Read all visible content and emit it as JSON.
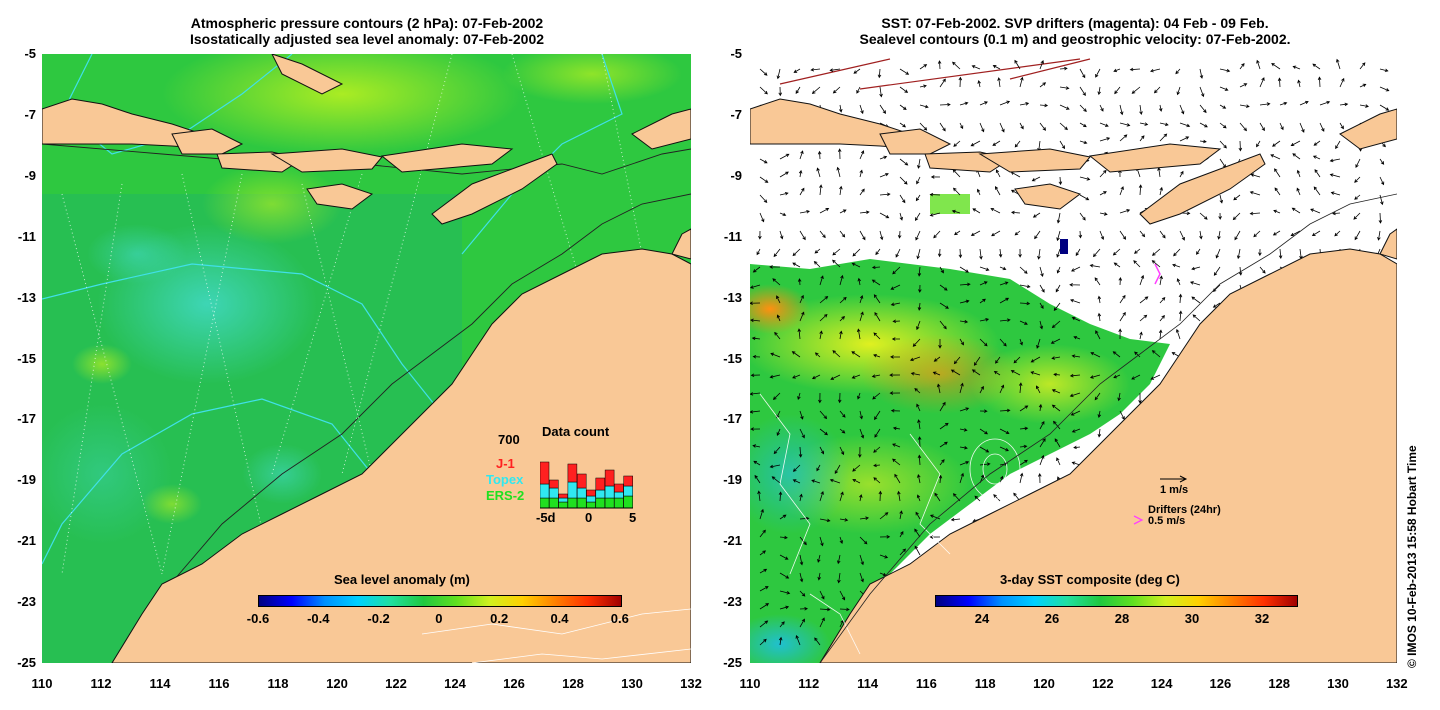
{
  "left": {
    "title_line1": "Atmospheric pressure contours (2 hPa): 07-Feb-2002",
    "title_line2": "Isostatically adjusted sea level anomaly: 07-Feb-2002",
    "colorbar_title": "Sea level anomaly (m)",
    "colorbar_ticks": [
      "-0.6",
      "-0.4",
      "-0.2",
      "0",
      "0.2",
      "0.4",
      "0.6"
    ],
    "legend": {
      "count_label": "700",
      "title": "Data count",
      "series": [
        {
          "name": "J-1",
          "color": "#ff2020"
        },
        {
          "name": "Topex",
          "color": "#30e8f0"
        },
        {
          "name": "ERS-2",
          "color": "#20e020"
        }
      ],
      "x_ticks": [
        "-5d",
        "0",
        "5"
      ]
    }
  },
  "right": {
    "title_line1": "SST: 07-Feb-2002. SVP drifters (magenta): 04 Feb - 09 Feb.",
    "title_line2": "Sealevel contours (0.1 m) and geostrophic velocity: 07-Feb-2002.",
    "colorbar_title": "3-day SST composite (deg C)",
    "colorbar_ticks": [
      "24",
      "26",
      "28",
      "30",
      "32"
    ],
    "velocity_scale": "1 m/s",
    "drifters_label": "Drifters (24hr)",
    "drifters_scale": "0.5 m/s"
  },
  "axes": {
    "y_ticks": [
      "-5",
      "-7",
      "-9",
      "-11",
      "-13",
      "-15",
      "-17",
      "-19",
      "-21",
      "-23",
      "-25"
    ],
    "x_ticks": [
      "110",
      "112",
      "114",
      "116",
      "118",
      "120",
      "122",
      "124",
      "126",
      "128",
      "130",
      "132"
    ]
  },
  "credit": "© IMOS 10-Feb-2013 15:58 Hobart Time",
  "colors": {
    "land": "#f9c896",
    "sea_green": "#2ec840",
    "white_sea": "#ffffff"
  }
}
